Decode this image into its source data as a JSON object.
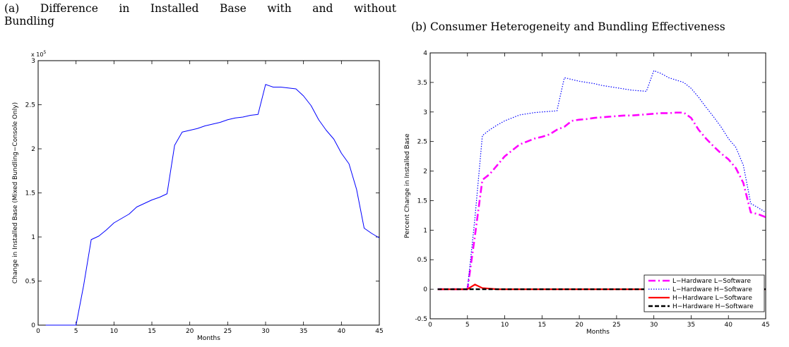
{
  "captions": {
    "a_line1": "(a) Difference in Installed Base with and without",
    "a_line2": "Bundling",
    "b": "(b) Consumer Heterogeneity and Bundling Effectiveness"
  },
  "chart_data": [
    {
      "type": "line",
      "xlabel": "Months",
      "ylabel": "Change in Installed Base (Mixed Bundling−Console Only)",
      "xlim": [
        0,
        45
      ],
      "ylim": [
        0,
        300000
      ],
      "xticks": [
        0,
        5,
        10,
        15,
        20,
        25,
        30,
        35,
        40,
        45
      ],
      "yticks": [
        0,
        50000,
        100000,
        150000,
        200000,
        250000,
        300000
      ],
      "ytick_labels": [
        "0",
        "0.5",
        "1",
        "1.5",
        "2",
        "2.5",
        "3"
      ],
      "y_multiplier": "x 10",
      "y_multiplier_exp": "5",
      "grid": false,
      "series": [
        {
          "color": "#0000ff",
          "x": [
            1,
            2,
            3,
            4,
            5,
            6,
            7,
            8,
            9,
            10,
            11,
            12,
            13,
            14,
            15,
            16,
            17,
            18,
            19,
            20,
            21,
            22,
            23,
            24,
            25,
            26,
            27,
            28,
            29,
            30,
            31,
            32,
            33,
            34,
            35,
            36,
            37,
            38,
            39,
            40,
            41,
            42,
            43,
            44,
            45
          ],
          "values": [
            0,
            0,
            0,
            0,
            0,
            45000,
            97000,
            101000,
            108000,
            116000,
            121000,
            126000,
            134000,
            138000,
            142000,
            145000,
            149000,
            204000,
            219000,
            221000,
            223000,
            226000,
            228000,
            230000,
            233000,
            235000,
            236000,
            238000,
            239000,
            273000,
            270000,
            270000,
            269000,
            268000,
            260000,
            249000,
            233000,
            221000,
            211000,
            195000,
            183000,
            154000,
            110000,
            104000,
            99000
          ]
        }
      ]
    },
    {
      "type": "line",
      "xlabel": "Months",
      "ylabel": "Percent Change in Installed Base",
      "xlim": [
        0,
        45
      ],
      "ylim": [
        -0.5,
        4
      ],
      "xticks": [
        0,
        5,
        10,
        15,
        20,
        25,
        30,
        35,
        40,
        45
      ],
      "yticks": [
        -0.5,
        0,
        0.5,
        1,
        1.5,
        2,
        2.5,
        3,
        3.5,
        4
      ],
      "ytick_labels": [
        "-0.5",
        "0",
        "0.5",
        "1",
        "1.5",
        "2",
        "2.5",
        "3",
        "3.5",
        "4"
      ],
      "grid": false,
      "legend_position": "bottom-right",
      "series": [
        {
          "name": "L−Hardware L−Software",
          "color": "#ff00ff",
          "style": "dashdot",
          "x": [
            1,
            2,
            3,
            4,
            5,
            6,
            7,
            8,
            9,
            10,
            11,
            12,
            13,
            14,
            15,
            16,
            17,
            18,
            19,
            20,
            21,
            22,
            23,
            24,
            25,
            26,
            27,
            28,
            29,
            30,
            31,
            32,
            33,
            34,
            35,
            36,
            37,
            38,
            39,
            40,
            41,
            42,
            43,
            44,
            45
          ],
          "values": [
            0,
            0,
            0,
            0,
            0,
            0.9,
            1.85,
            1.95,
            2.1,
            2.25,
            2.35,
            2.45,
            2.5,
            2.55,
            2.58,
            2.62,
            2.7,
            2.75,
            2.85,
            2.87,
            2.88,
            2.9,
            2.91,
            2.92,
            2.93,
            2.94,
            2.94,
            2.95,
            2.96,
            2.97,
            2.98,
            2.98,
            2.99,
            2.99,
            2.9,
            2.7,
            2.55,
            2.42,
            2.3,
            2.2,
            2.05,
            1.8,
            1.3,
            1.27,
            1.22
          ]
        },
        {
          "name": "L−Hardware H−Software",
          "color": "#0000ff",
          "style": "dotted",
          "x": [
            1,
            2,
            3,
            4,
            5,
            6,
            7,
            8,
            9,
            10,
            11,
            12,
            13,
            14,
            15,
            16,
            17,
            18,
            19,
            20,
            21,
            22,
            23,
            24,
            25,
            26,
            27,
            28,
            29,
            30,
            31,
            32,
            33,
            34,
            35,
            36,
            37,
            38,
            39,
            40,
            41,
            42,
            43,
            44,
            45
          ],
          "values": [
            0,
            0,
            0,
            0,
            0,
            1.2,
            2.6,
            2.7,
            2.78,
            2.85,
            2.9,
            2.95,
            2.97,
            2.99,
            3.0,
            3.01,
            3.02,
            3.58,
            3.55,
            3.52,
            3.5,
            3.48,
            3.45,
            3.43,
            3.41,
            3.39,
            3.37,
            3.36,
            3.35,
            3.7,
            3.65,
            3.58,
            3.54,
            3.5,
            3.4,
            3.25,
            3.08,
            2.92,
            2.75,
            2.55,
            2.4,
            2.1,
            1.45,
            1.38,
            1.3
          ]
        },
        {
          "name": "H−Hardware L−Software",
          "color": "#ff0000",
          "style": "solid",
          "x": [
            1,
            2,
            3,
            4,
            5,
            6,
            7,
            8,
            9,
            10,
            11,
            12,
            13,
            14,
            15,
            16,
            17,
            18,
            19,
            20,
            21,
            22,
            23,
            24,
            25,
            26,
            27,
            28,
            29,
            30,
            31,
            32,
            33,
            34,
            35,
            36,
            37,
            38,
            39,
            40,
            41,
            42,
            43,
            44,
            45
          ],
          "values": [
            0,
            0,
            0,
            0,
            0,
            0.08,
            0.02,
            0.01,
            0,
            0,
            0,
            0,
            0,
            0,
            0,
            0,
            0,
            0,
            0,
            0,
            0,
            0,
            0,
            0,
            0,
            0,
            0,
            0,
            0,
            0,
            0,
            0,
            0,
            0,
            0,
            0,
            0,
            0,
            0,
            0,
            0,
            0,
            0,
            0,
            0
          ]
        },
        {
          "name": "H−Hardware H−Software",
          "color": "#000000",
          "style": "dashed",
          "x": [
            1,
            2,
            3,
            4,
            5,
            6,
            7,
            8,
            9,
            10,
            11,
            12,
            13,
            14,
            15,
            16,
            17,
            18,
            19,
            20,
            21,
            22,
            23,
            24,
            25,
            26,
            27,
            28,
            29,
            30,
            31,
            32,
            33,
            34,
            35,
            36,
            37,
            38,
            39,
            40,
            41,
            42,
            43,
            44,
            45
          ],
          "values": [
            0,
            0,
            0,
            0,
            0,
            0,
            0,
            0,
            0,
            0,
            0,
            0,
            0,
            0,
            0,
            0,
            0,
            0,
            0,
            0,
            0,
            0,
            0,
            0,
            0,
            0,
            0,
            0,
            0,
            0,
            0,
            0,
            0,
            0,
            0,
            0,
            0,
            0,
            0,
            0,
            0,
            0,
            0,
            0,
            0
          ]
        }
      ]
    }
  ]
}
